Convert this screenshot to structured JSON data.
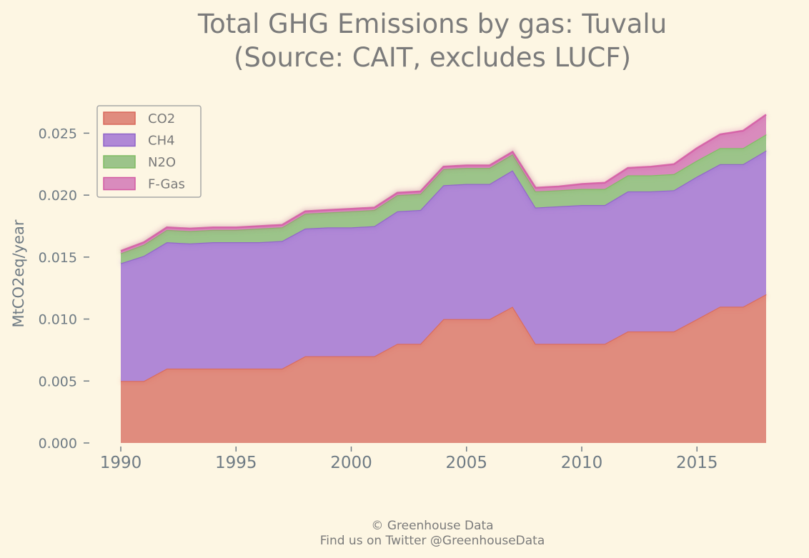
{
  "chart_data": {
    "type": "area",
    "stacked": true,
    "title_lines": [
      "Total GHG Emissions by gas: Tuvalu",
      "(Source: CAIT, excludes LUCF)"
    ],
    "xlabel": "",
    "ylabel": "MtCO2eq/year",
    "xlim": [
      1990,
      2018
    ],
    "ylim": [
      0,
      0.027
    ],
    "x_ticks": [
      1990,
      1995,
      2000,
      2005,
      2010,
      2015
    ],
    "y_ticks": [
      "0.000",
      "0.005",
      "0.010",
      "0.015",
      "0.020",
      "0.025"
    ],
    "legend_position": "top-left",
    "x": [
      1990,
      1991,
      1992,
      1993,
      1994,
      1995,
      1996,
      1997,
      1998,
      1999,
      2000,
      2001,
      2002,
      2003,
      2004,
      2005,
      2006,
      2007,
      2008,
      2009,
      2010,
      2011,
      2012,
      2013,
      2014,
      2015,
      2016,
      2017,
      2018
    ],
    "series": [
      {
        "name": "CO2",
        "color": "#e08c7e",
        "line_color": "#d9675a",
        "values": [
          0.005,
          0.005,
          0.006,
          0.006,
          0.006,
          0.006,
          0.006,
          0.006,
          0.007,
          0.007,
          0.007,
          0.007,
          0.008,
          0.008,
          0.01,
          0.01,
          0.01,
          0.011,
          0.008,
          0.008,
          0.008,
          0.008,
          0.009,
          0.009,
          0.009,
          0.01,
          0.011,
          0.011,
          0.012
        ]
      },
      {
        "name": "CH4",
        "color": "#b088d6",
        "line_color": "#8e63c8",
        "values": [
          0.0095,
          0.0101,
          0.0102,
          0.0101,
          0.0102,
          0.0102,
          0.0102,
          0.0103,
          0.0103,
          0.0104,
          0.0104,
          0.0105,
          0.0107,
          0.0108,
          0.0108,
          0.0109,
          0.0109,
          0.011,
          0.011,
          0.0111,
          0.0112,
          0.0112,
          0.0113,
          0.0113,
          0.0114,
          0.0115,
          0.0115,
          0.0115,
          0.0116
        ]
      },
      {
        "name": "N2O",
        "color": "#9cc48a",
        "line_color": "#7fbb62",
        "values": [
          0.0008,
          0.0009,
          0.001,
          0.001,
          0.001,
          0.001,
          0.0011,
          0.0011,
          0.0012,
          0.0012,
          0.0013,
          0.0013,
          0.0013,
          0.0013,
          0.0013,
          0.0013,
          0.0013,
          0.0013,
          0.0013,
          0.0013,
          0.0013,
          0.0013,
          0.0013,
          0.0013,
          0.0013,
          0.0013,
          0.0013,
          0.0013,
          0.0013
        ]
      },
      {
        "name": "F-Gas",
        "color": "#d98bbd",
        "line_color": "#d35aa3",
        "values": [
          0.0002,
          0.0002,
          0.0002,
          0.0002,
          0.0002,
          0.0002,
          0.0002,
          0.0002,
          0.0002,
          0.0002,
          0.0002,
          0.0002,
          0.0002,
          0.0002,
          0.0002,
          0.0002,
          0.0002,
          0.0002,
          0.0003,
          0.0003,
          0.0004,
          0.0005,
          0.0006,
          0.0007,
          0.0008,
          0.001,
          0.0011,
          0.0014,
          0.0016
        ]
      }
    ]
  },
  "footer": {
    "line1": "© Greenhouse Data",
    "line2": "Find us on Twitter @GreenhouseData"
  }
}
